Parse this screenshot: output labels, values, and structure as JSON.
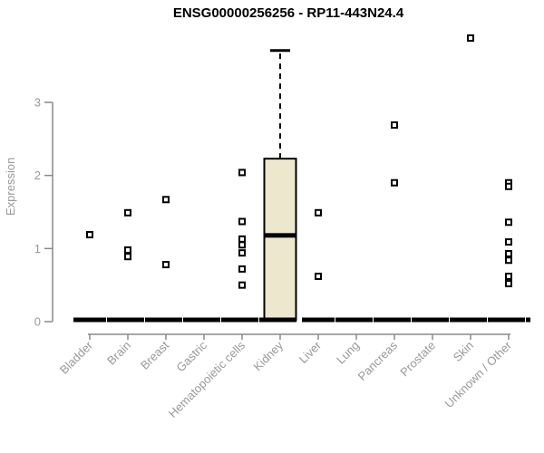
{
  "title": "ENSG00000256256 - RP11-443N24.4",
  "colors": {
    "background": "#ffffff",
    "title": "#000000",
    "axis": "#8a8a8a",
    "tick_label": "#999999",
    "box_fill": "#ece7cd",
    "box_border": "#000000",
    "point": "#000000"
  },
  "chart_data": {
    "type": "boxplot",
    "title": "ENSG00000256256 - RP11-443N24.4",
    "xlabel": "",
    "ylabel": "Expression",
    "yticks": [
      0,
      1,
      2,
      3
    ],
    "ylim": [
      0,
      3.9
    ],
    "grid": false,
    "legend": "none",
    "categories": [
      "Bladder",
      "Brain",
      "Breast",
      "Gastric",
      "Hematopoietic cells",
      "Kidney",
      "Liver",
      "Lung",
      "Pancreas",
      "Prostate",
      "Skin",
      "Unknown / Other"
    ],
    "series": [
      {
        "category": "Bladder",
        "whisker_low": 0,
        "q1": 0,
        "median": 0,
        "q3": 0,
        "whisker_high": 0,
        "outliers": [
          1.19
        ]
      },
      {
        "category": "Brain",
        "whisker_low": 0,
        "q1": 0,
        "median": 0,
        "q3": 0,
        "whisker_high": 0,
        "outliers": [
          1.49,
          0.98,
          0.89
        ]
      },
      {
        "category": "Breast",
        "whisker_low": 0,
        "q1": 0,
        "median": 0,
        "q3": 0,
        "whisker_high": 0,
        "outliers": [
          1.67,
          0.78
        ]
      },
      {
        "category": "Gastric",
        "whisker_low": 0,
        "q1": 0,
        "median": 0,
        "q3": 0,
        "whisker_high": 0,
        "outliers": []
      },
      {
        "category": "Hematopoietic cells",
        "whisker_low": 0,
        "q1": 0,
        "median": 0,
        "q3": 0,
        "whisker_high": 0,
        "outliers": [
          2.04,
          1.37,
          1.13,
          1.05,
          0.94,
          0.72,
          0.5
        ]
      },
      {
        "category": "Kidney",
        "whisker_low": 0.02,
        "q1": 0.02,
        "median": 1.18,
        "q3": 2.23,
        "whisker_high": 3.71,
        "outliers": []
      },
      {
        "category": "Liver",
        "whisker_low": 0,
        "q1": 0,
        "median": 0,
        "q3": 0,
        "whisker_high": 0,
        "outliers": [
          1.49,
          0.62
        ]
      },
      {
        "category": "Lung",
        "whisker_low": 0,
        "q1": 0,
        "median": 0,
        "q3": 0,
        "whisker_high": 0,
        "outliers": []
      },
      {
        "category": "Pancreas",
        "whisker_low": 0,
        "q1": 0,
        "median": 0,
        "q3": 0,
        "whisker_high": 0,
        "outliers": [
          2.69,
          1.9
        ]
      },
      {
        "category": "Prostate",
        "whisker_low": 0,
        "q1": 0,
        "median": 0,
        "q3": 0,
        "whisker_high": 0,
        "outliers": []
      },
      {
        "category": "Skin",
        "whisker_low": 0,
        "q1": 0,
        "median": 0,
        "q3": 0,
        "whisker_high": 0,
        "outliers": [
          3.88
        ]
      },
      {
        "category": "Unknown / Other",
        "whisker_low": 0,
        "q1": 0,
        "median": 0,
        "q3": 0,
        "whisker_high": 0,
        "outliers": [
          1.9,
          1.85,
          1.36,
          1.09,
          0.93,
          0.84,
          0.62,
          0.52
        ]
      }
    ]
  }
}
